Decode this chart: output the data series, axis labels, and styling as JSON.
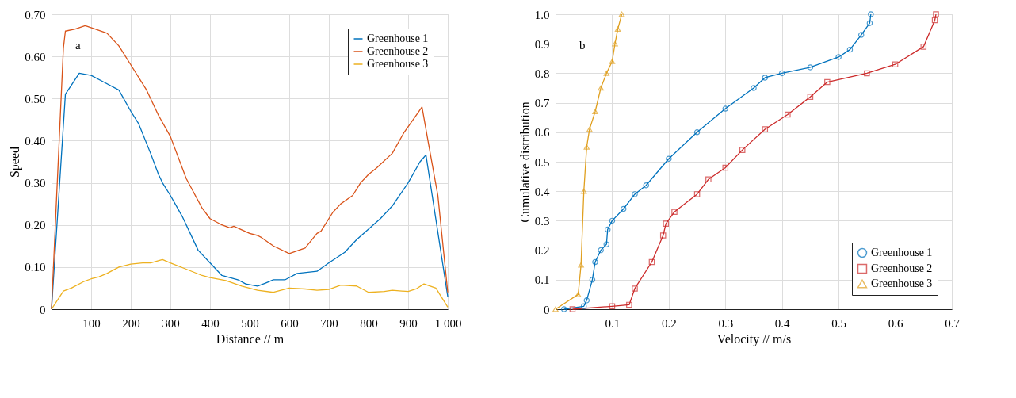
{
  "chart_data": [
    {
      "type": "line",
      "xlabel": "Distance // m",
      "ylabel": "Speed",
      "annotations": [
        "a"
      ],
      "legend": "top right",
      "grid": true,
      "marker": "none",
      "line_style": "solid",
      "xlim": [
        0,
        1000
      ],
      "xticks": [
        100,
        200,
        300,
        400,
        500,
        600,
        700,
        800,
        900,
        {
          "value": 1000,
          "label": "1 000"
        }
      ],
      "ylim": [
        0,
        0.7
      ],
      "yticks": [
        0,
        {
          "value": 0.1,
          "label": "0.10"
        },
        {
          "value": 0.2,
          "label": "0.20"
        },
        {
          "value": 0.3,
          "label": "0.30"
        },
        {
          "value": 0.4,
          "label": "0.40"
        },
        {
          "value": 0.5,
          "label": "0.50"
        },
        {
          "value": 0.6,
          "label": "0.60"
        },
        {
          "value": 0.7,
          "label": "0.70"
        }
      ],
      "series": [
        {
          "name": "Greenhouse 1",
          "color": "#0072bd",
          "x": [
            0,
            35,
            70,
            100,
            130,
            170,
            200,
            220,
            250,
            270,
            280,
            300,
            330,
            370,
            400,
            430,
            470,
            490,
            520,
            540,
            560,
            590,
            620,
            670,
            700,
            740,
            770,
            800,
            830,
            860,
            900,
            930,
            945,
            1000
          ],
          "values": [
            0,
            0.51,
            0.56,
            0.555,
            0.54,
            0.52,
            0.47,
            0.44,
            0.37,
            0.32,
            0.3,
            0.27,
            0.22,
            0.14,
            0.11,
            0.08,
            0.07,
            0.06,
            0.055,
            0.062,
            0.07,
            0.07,
            0.085,
            0.09,
            0.11,
            0.135,
            0.165,
            0.19,
            0.215,
            0.245,
            0.3,
            0.35,
            0.366,
            0.03
          ]
        },
        {
          "name": "Greenhouse 2",
          "color": "#d95319",
          "x": [
            0,
            30,
            35,
            60,
            85,
            110,
            140,
            170,
            200,
            240,
            270,
            300,
            340,
            380,
            400,
            430,
            450,
            460,
            500,
            520,
            530,
            560,
            600,
            640,
            670,
            680,
            710,
            730,
            760,
            780,
            800,
            820,
            860,
            890,
            920,
            935,
            950,
            975,
            1000
          ],
          "values": [
            0,
            0.62,
            0.66,
            0.665,
            0.673,
            0.665,
            0.655,
            0.625,
            0.58,
            0.52,
            0.46,
            0.41,
            0.31,
            0.24,
            0.215,
            0.2,
            0.193,
            0.197,
            0.18,
            0.175,
            0.17,
            0.15,
            0.132,
            0.145,
            0.18,
            0.185,
            0.23,
            0.25,
            0.27,
            0.3,
            0.32,
            0.335,
            0.37,
            0.42,
            0.46,
            0.48,
            0.4,
            0.27,
            0.04
          ]
        },
        {
          "name": "Greenhouse 3",
          "color": "#edb120",
          "x": [
            0,
            30,
            50,
            80,
            100,
            120,
            140,
            170,
            200,
            230,
            250,
            280,
            300,
            340,
            380,
            400,
            440,
            480,
            520,
            560,
            600,
            640,
            670,
            700,
            730,
            770,
            800,
            840,
            860,
            900,
            920,
            940,
            970,
            1000
          ],
          "values": [
            0,
            0.043,
            0.05,
            0.065,
            0.072,
            0.077,
            0.085,
            0.1,
            0.107,
            0.11,
            0.11,
            0.118,
            0.11,
            0.095,
            0.08,
            0.075,
            0.068,
            0.055,
            0.045,
            0.04,
            0.05,
            0.048,
            0.045,
            0.047,
            0.057,
            0.055,
            0.04,
            0.042,
            0.045,
            0.042,
            0.048,
            0.06,
            0.05,
            0.005
          ]
        }
      ]
    },
    {
      "type": "line",
      "xlabel": "Velocity // m/s",
      "ylabel": "Cumulative distribution",
      "annotations": [
        "b"
      ],
      "legend": "bottom right",
      "grid": true,
      "line_style": "solid",
      "xlim": [
        0,
        0.7
      ],
      "xticks": [
        0.1,
        0.2,
        0.3,
        0.4,
        0.5,
        0.6,
        0.7
      ],
      "ylim": [
        0,
        1
      ],
      "yticks": [
        0,
        0.1,
        0.2,
        0.3,
        0.4,
        0.5,
        0.6,
        0.7,
        0.8,
        0.9,
        {
          "value": 1,
          "label": "1.0"
        }
      ],
      "series": [
        {
          "name": "Greenhouse 1",
          "color": "#0072bd",
          "marker": "circle",
          "x": [
            0.015,
            0.05,
            0.055,
            0.065,
            0.07,
            0.08,
            0.09,
            0.092,
            0.1,
            0.12,
            0.14,
            0.16,
            0.2,
            0.25,
            0.3,
            0.35,
            0.37,
            0.4,
            0.45,
            0.5,
            0.52,
            0.54,
            0.555,
            0.557
          ],
          "values": [
            0,
            0.01,
            0.03,
            0.1,
            0.16,
            0.2,
            0.22,
            0.27,
            0.3,
            0.34,
            0.39,
            0.42,
            0.51,
            0.6,
            0.68,
            0.75,
            0.785,
            0.8,
            0.82,
            0.855,
            0.88,
            0.93,
            0.97,
            1.0
          ]
        },
        {
          "name": "Greenhouse 2",
          "color": "#cc2a2a",
          "marker": "square",
          "x": [
            0.03,
            0.1,
            0.13,
            0.14,
            0.17,
            0.19,
            0.195,
            0.21,
            0.25,
            0.27,
            0.3,
            0.33,
            0.37,
            0.41,
            0.45,
            0.48,
            0.55,
            0.6,
            0.65,
            0.67,
            0.672
          ],
          "values": [
            0,
            0.01,
            0.015,
            0.07,
            0.16,
            0.25,
            0.29,
            0.33,
            0.39,
            0.44,
            0.48,
            0.54,
            0.61,
            0.66,
            0.72,
            0.77,
            0.8,
            0.83,
            0.89,
            0.98,
            1.0
          ]
        },
        {
          "name": "Greenhouse 3",
          "color": "#e0a020",
          "marker": "triangle",
          "x": [
            0,
            0.04,
            0.045,
            0.05,
            0.055,
            0.06,
            0.07,
            0.08,
            0.09,
            0.1,
            0.105,
            0.11,
            0.117
          ],
          "values": [
            0,
            0.05,
            0.15,
            0.4,
            0.55,
            0.61,
            0.67,
            0.75,
            0.8,
            0.84,
            0.9,
            0.95,
            1.0
          ]
        }
      ]
    }
  ]
}
